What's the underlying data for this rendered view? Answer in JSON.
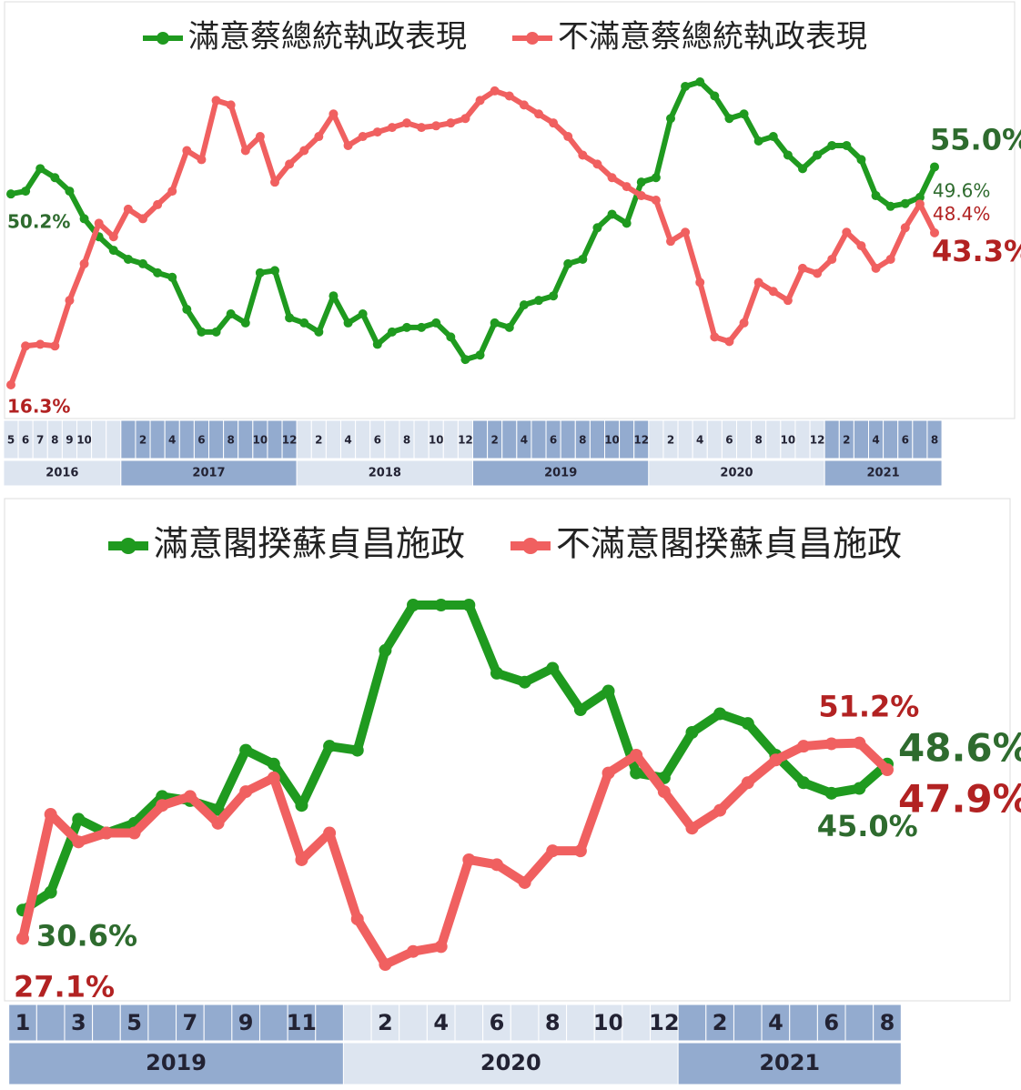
{
  "chart_data": [
    {
      "type": "line",
      "series": [
        {
          "name": "滿意蔡總統執政表現",
          "color": "#1f9a1f",
          "label_color": "#2e6b2e",
          "values": [
            50.2,
            50.7,
            54.7,
            53.1,
            50.7,
            45.8,
            42.6,
            40.2,
            38.6,
            37.8,
            36.2,
            35.4,
            29.7,
            25.7,
            25.7,
            28.9,
            27.3,
            36.2,
            36.6,
            28.2,
            27.3,
            25.7,
            32.1,
            27.3,
            28.9,
            23.5,
            25.7,
            26.5,
            26.5,
            27.3,
            24.8,
            20.8,
            21.6,
            27.3,
            26.5,
            30.5,
            31.3,
            32.1,
            37.8,
            38.6,
            44.2,
            46.6,
            45.0,
            52.3,
            53.1,
            63.6,
            69.3,
            70.1,
            67.6,
            63.6,
            64.4,
            59.6,
            60.4,
            57.1,
            54.7,
            57.1,
            58.8,
            58.8,
            56.3,
            49.9,
            48.0,
            48.5,
            49.6,
            55.0
          ],
          "value_labels": [
            "50.2%",
            null,
            null,
            null,
            null,
            null,
            null,
            null,
            null,
            null,
            null,
            null,
            null,
            null,
            null,
            null,
            null,
            null,
            null,
            null,
            null,
            null,
            null,
            null,
            null,
            null,
            null,
            null,
            null,
            null,
            null,
            null,
            null,
            null,
            null,
            null,
            null,
            null,
            null,
            null,
            null,
            null,
            null,
            null,
            null,
            null,
            null,
            null,
            null,
            null,
            null,
            null,
            null,
            null,
            null,
            null,
            null,
            null,
            null,
            null,
            null,
            null,
            "49.6%",
            "55.0%"
          ]
        },
        {
          "name": "不滿意蔡總統執政表現",
          "color": "#f06060",
          "label_color": "#b22222",
          "values": [
            16.3,
            23.2,
            23.5,
            23.2,
            31.3,
            37.8,
            45.0,
            42.6,
            47.5,
            45.8,
            48.3,
            50.7,
            57.9,
            56.3,
            66.8,
            66.0,
            57.9,
            60.4,
            52.3,
            55.5,
            57.9,
            60.4,
            64.4,
            58.8,
            60.4,
            61.2,
            62.0,
            62.8,
            62.0,
            62.3,
            62.8,
            63.6,
            66.8,
            68.5,
            67.6,
            66.0,
            64.4,
            62.8,
            60.4,
            57.1,
            55.5,
            53.1,
            51.5,
            49.9,
            49.1,
            41.8,
            43.4,
            34.5,
            24.8,
            24.0,
            27.3,
            34.5,
            32.9,
            31.3,
            37.0,
            36.1,
            38.6,
            43.4,
            41.0,
            37.0,
            38.6,
            44.2,
            48.4,
            43.3
          ],
          "value_labels": [
            "16.3%",
            null,
            null,
            null,
            null,
            null,
            null,
            null,
            null,
            null,
            null,
            null,
            null,
            null,
            null,
            null,
            null,
            null,
            null,
            null,
            null,
            null,
            null,
            null,
            null,
            null,
            null,
            null,
            null,
            null,
            null,
            null,
            null,
            null,
            null,
            null,
            null,
            null,
            null,
            null,
            null,
            null,
            null,
            null,
            null,
            null,
            null,
            null,
            null,
            null,
            null,
            null,
            null,
            null,
            null,
            null,
            null,
            null,
            null,
            null,
            null,
            null,
            "48.4%",
            "43.3%"
          ]
        }
      ],
      "groups": [
        {
          "label": "2016",
          "categories": [
            "5",
            "6",
            "7",
            "8",
            "9",
            "10",
            null,
            null
          ]
        },
        {
          "label": "2017",
          "categories": [
            null,
            "2",
            null,
            "4",
            null,
            "6",
            null,
            "8",
            null,
            "10",
            null,
            "12"
          ]
        },
        {
          "label": "2018",
          "categories": [
            null,
            "2",
            null,
            "4",
            null,
            "6",
            null,
            "8",
            null,
            "10",
            null,
            "12"
          ]
        },
        {
          "label": "2019",
          "categories": [
            null,
            "2",
            null,
            "4",
            null,
            "6",
            null,
            "8",
            null,
            "10",
            null,
            "12"
          ]
        },
        {
          "label": "2020",
          "categories": [
            null,
            "2",
            null,
            "4",
            null,
            "6",
            null,
            "8",
            null,
            "10",
            null,
            "12"
          ]
        },
        {
          "label": "2021",
          "categories": [
            null,
            "2",
            null,
            "4",
            null,
            "6",
            null,
            "8"
          ]
        }
      ]
    },
    {
      "type": "line",
      "series": [
        {
          "name": "滿意閣揆蘇貞昌施政",
          "color": "#1f9a1f",
          "label_color": "#2e6b2e",
          "values": [
            30.6,
            32.8,
            41.8,
            40.1,
            41.3,
            44.6,
            44.1,
            43.0,
            50.3,
            48.6,
            43.5,
            50.8,
            50.3,
            62.6,
            68.2,
            68.2,
            68.2,
            59.8,
            58.7,
            60.4,
            55.3,
            57.6,
            47.5,
            46.9,
            52.5,
            54.8,
            53.6,
            49.7,
            46.3,
            45.0,
            45.6,
            48.6
          ],
          "value_labels": [
            "30.6%",
            null,
            null,
            null,
            null,
            null,
            null,
            null,
            null,
            null,
            null,
            null,
            null,
            null,
            null,
            null,
            null,
            null,
            null,
            null,
            null,
            null,
            null,
            null,
            null,
            null,
            null,
            null,
            null,
            "45.0%",
            null,
            "48.6%"
          ]
        },
        {
          "name": "不滿意閣揆蘇貞昌施政",
          "color": "#f06060",
          "label_color": "#b22222",
          "values": [
            27.1,
            42.4,
            39.0,
            40.1,
            40.1,
            43.5,
            44.6,
            41.3,
            45.2,
            46.9,
            36.8,
            40.1,
            29.5,
            23.9,
            25.5,
            26.1,
            36.8,
            36.2,
            34.0,
            37.9,
            37.9,
            47.5,
            49.7,
            45.2,
            40.7,
            42.9,
            46.3,
            49.1,
            50.8,
            51.1,
            51.2,
            47.9
          ],
          "value_labels": [
            "27.1%",
            null,
            null,
            null,
            null,
            null,
            null,
            null,
            null,
            null,
            null,
            null,
            null,
            null,
            null,
            null,
            null,
            null,
            null,
            null,
            null,
            null,
            null,
            null,
            null,
            null,
            null,
            null,
            null,
            null,
            "51.2%",
            "47.9%"
          ]
        }
      ],
      "groups": [
        {
          "label": "2019",
          "categories": [
            "1",
            null,
            "3",
            null,
            "5",
            null,
            "7",
            null,
            "9",
            null,
            "11",
            null
          ]
        },
        {
          "label": "2020",
          "categories": [
            null,
            "2",
            null,
            "4",
            null,
            "6",
            null,
            "8",
            null,
            "10",
            null,
            "12"
          ]
        },
        {
          "label": "2021",
          "categories": [
            null,
            "2",
            null,
            "4",
            null,
            "6",
            null,
            "8"
          ]
        }
      ]
    }
  ]
}
